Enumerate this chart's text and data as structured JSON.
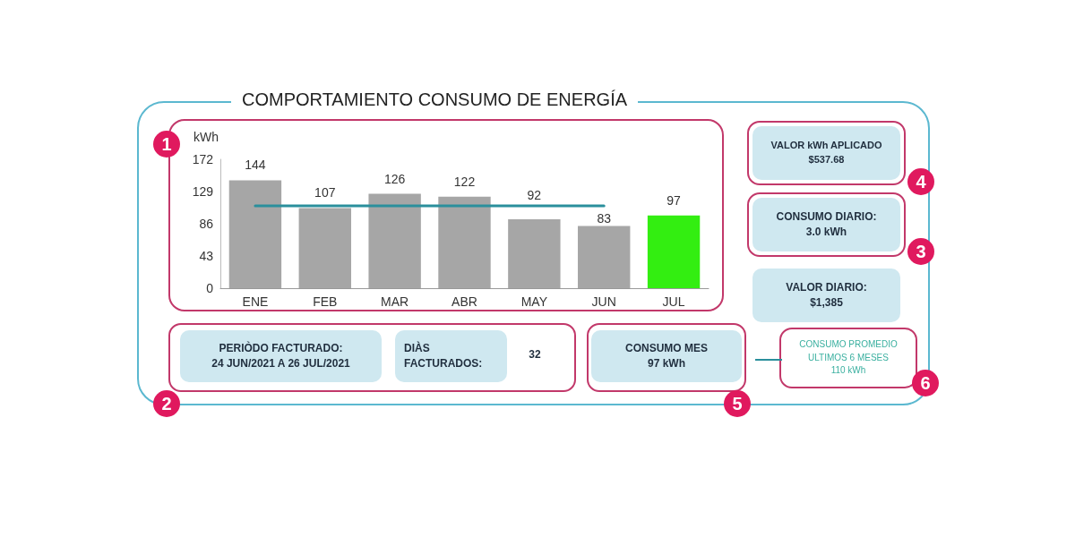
{
  "chart_data": {
    "type": "bar",
    "title": "COMPORTAMIENTO CONSUMO DE ENERGÍA",
    "ylabel": "kWh",
    "categories": [
      "ENE",
      "FEB",
      "MAR",
      "ABR",
      "MAY",
      "JUN",
      "JUL"
    ],
    "series": [
      {
        "colors": [
          "#a6a6a6",
          "#a6a6a6",
          "#a6a6a6",
          "#a6a6a6",
          "#a6a6a6",
          "#a6a6a6",
          "#33ee11"
        ],
        "values": [
          144,
          107,
          126,
          122,
          92,
          83,
          97
        ],
        "value_labels": [
          "144",
          "107",
          "126",
          "122",
          "92",
          "83",
          "97"
        ]
      },
      {
        "type": "line",
        "color": "#2a8f9c",
        "values": [
          110,
          110,
          110,
          110,
          110,
          110,
          null
        ]
      }
    ],
    "ylim": [
      0,
      172
    ],
    "yticks": [
      0,
      43,
      86,
      129,
      172
    ],
    "grid": false,
    "marker": "none",
    "annotations": [
      "VALOR kWh APLICADO\n$537.68",
      "CONSUMO DIARIO:\n3.0 kWh",
      "VALOR DIARIO:\n$1,385",
      "PERIÒDO FACTURADO:\n24 JUN/2021 A 26 JUL/2021",
      "DIÀS\nFACTURADOS:",
      "32",
      "CONSUMO MES\n97 kWh",
      "CONSUMO PROMEDIO\nULTIMOS 6 MESES\n110 kWh",
      "1",
      "2",
      "3",
      "4",
      "5",
      "6"
    ]
  }
}
